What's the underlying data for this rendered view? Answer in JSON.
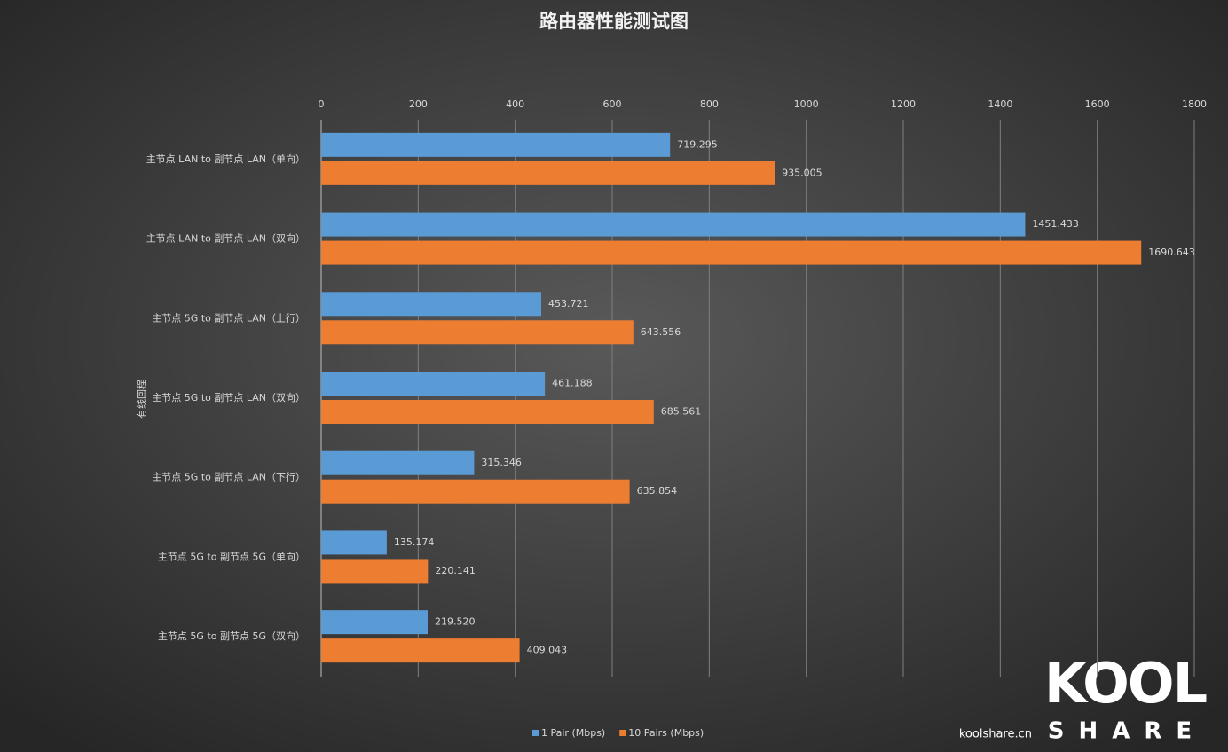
{
  "chart_data": {
    "type": "hbar",
    "title": "路由器性能测试图",
    "y_axis_label": "有线回程",
    "categories": [
      "主节点 LAN to 副节点 LAN（单向）",
      "主节点 LAN to 副节点 LAN（双向）",
      "主节点 5G to 副节点 LAN（上行）",
      "主节点 5G to 副节点 LAN（双向）",
      "主节点 5G to 副节点 LAN（下行）",
      "主节点 5G to 副节点 5G（单向）",
      "主节点 5G to 副节点 5G（双向）"
    ],
    "series": [
      {
        "name": "1  Pair  (Mbps)",
        "color": "#5b9bd5",
        "values": [
          719.295,
          1451.433,
          453.721,
          461.188,
          315.346,
          135.174,
          219.52
        ],
        "value_labels": [
          "719.295",
          "1451.433",
          "453.721",
          "461.188",
          "315.346",
          "135.174",
          "219.520"
        ]
      },
      {
        "name": "10  Pairs  (Mbps)",
        "color": "#ed7d31",
        "values": [
          935.005,
          1690.643,
          643.556,
          685.561,
          635.854,
          220.141,
          409.043
        ],
        "value_labels": [
          "935.005",
          "1690.643",
          "643.556",
          "685.561",
          "635.854",
          "220.141",
          "409.043"
        ]
      }
    ],
    "xlim": [
      0,
      1800
    ],
    "xticks": [
      0,
      200,
      400,
      600,
      800,
      1000,
      1200,
      1400,
      1600,
      1800
    ],
    "grid": true,
    "legend": "bottom"
  },
  "logo": {
    "site": "koolshare.cn",
    "brand": "KOOL",
    "sub": "SHARE"
  }
}
